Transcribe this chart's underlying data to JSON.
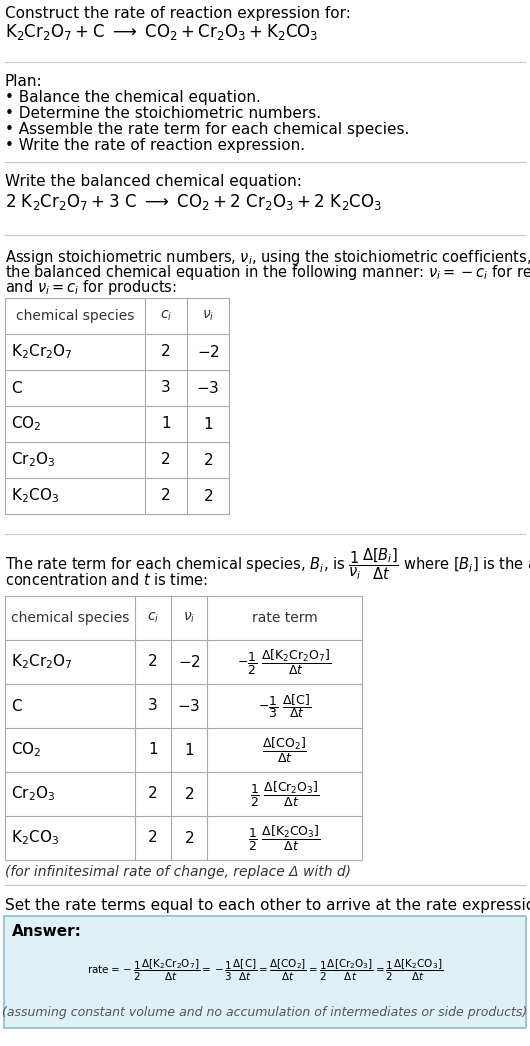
{
  "bg_color": "#ffffff",
  "text_color": "#000000",
  "title_line1": "Construct the rate of reaction expression for:",
  "plan_header": "Plan:",
  "plan_items": [
    "• Balance the chemical equation.",
    "• Determine the stoichiometric numbers.",
    "• Assemble the rate term for each chemical species.",
    "• Write the rate of reaction expression."
  ],
  "balanced_header": "Write the balanced chemical equation:",
  "stoich_lines": [
    "Assign stoichiometric numbers, $\\nu_i$, using the stoichiometric coefficients, $c_i$, from",
    "the balanced chemical equation in the following manner: $\\nu_i = -c_i$ for reactants",
    "and $\\nu_i = c_i$ for products:"
  ],
  "table1_species": [
    "$\\mathrm{K_2Cr_2O_7}$",
    "$\\mathrm{C}$",
    "$\\mathrm{CO_2}$",
    "$\\mathrm{Cr_2O_3}$",
    "$\\mathrm{K_2CO_3}$"
  ],
  "table1_ci": [
    "2",
    "3",
    "1",
    "2",
    "2"
  ],
  "table1_vi": [
    "$-2$",
    "$-3$",
    "$1$",
    "$2$",
    "$2$"
  ],
  "table2_species": [
    "$\\mathrm{K_2Cr_2O_7}$",
    "$\\mathrm{C}$",
    "$\\mathrm{CO_2}$",
    "$\\mathrm{Cr_2O_3}$",
    "$\\mathrm{K_2CO_3}$"
  ],
  "table2_ci": [
    "2",
    "3",
    "1",
    "2",
    "2"
  ],
  "table2_vi": [
    "$-2$",
    "$-3$",
    "$1$",
    "$2$",
    "$2$"
  ],
  "infinitesimal_note": "(for infinitesimal rate of change, replace Δ with d)",
  "set_equal_header": "Set the rate terms equal to each other to arrive at the rate expression:",
  "answer_box_color": "#dff0f7",
  "answer_border_color": "#8bbdd0",
  "answer_label": "Answer:",
  "answer_note": "(assuming constant volume and no accumulation of intermediates or side products)",
  "sep_color": "#c8c8c8",
  "table_border_color": "#aaaaaa",
  "normal_text_color": "#000000",
  "gray_text_color": "#555555"
}
